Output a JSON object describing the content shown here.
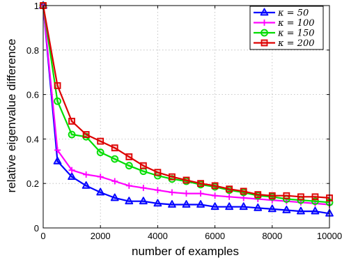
{
  "chart_data": {
    "type": "line",
    "xlabel": "number of examples",
    "ylabel": "relative eigenvalue difference",
    "xlim": [
      0,
      10000
    ],
    "ylim": [
      0,
      1
    ],
    "xticks": [
      0,
      2000,
      4000,
      6000,
      8000,
      10000
    ],
    "yticks": [
      0,
      0.2,
      0.4,
      0.6,
      0.8,
      1
    ],
    "xtick_labels": [
      "0",
      "2000",
      "4000",
      "6000",
      "8000",
      "10000"
    ],
    "ytick_labels": [
      "0",
      "0.2",
      "0.4",
      "0.6",
      "0.8",
      "1"
    ],
    "grid": true,
    "legend_position": "top-right",
    "x": [
      0,
      500,
      1000,
      1500,
      2000,
      2500,
      3000,
      3500,
      4000,
      4500,
      5000,
      5500,
      6000,
      6500,
      7000,
      7500,
      8000,
      8500,
      9000,
      9500,
      10000
    ],
    "series": [
      {
        "name": "κ = 50",
        "color": "#0000ff",
        "marker": "triangle",
        "values": [
          1.0,
          0.3,
          0.23,
          0.19,
          0.16,
          0.135,
          0.12,
          0.12,
          0.11,
          0.105,
          0.105,
          0.105,
          0.095,
          0.095,
          0.095,
          0.09,
          0.085,
          0.08,
          0.075,
          0.075,
          0.065
        ]
      },
      {
        "name": "κ = 100",
        "color": "#ff00ff",
        "marker": "plus",
        "values": [
          1.0,
          0.35,
          0.26,
          0.24,
          0.23,
          0.21,
          0.19,
          0.18,
          0.17,
          0.16,
          0.155,
          0.155,
          0.145,
          0.14,
          0.135,
          0.13,
          0.125,
          0.12,
          0.115,
          0.11,
          0.105
        ]
      },
      {
        "name": "κ = 150",
        "color": "#00dd00",
        "marker": "circle",
        "values": [
          1.0,
          0.57,
          0.42,
          0.41,
          0.34,
          0.31,
          0.28,
          0.255,
          0.235,
          0.22,
          0.21,
          0.195,
          0.185,
          0.17,
          0.16,
          0.145,
          0.14,
          0.13,
          0.125,
          0.12,
          0.115
        ]
      },
      {
        "name": "κ = 200",
        "color": "#dd0000",
        "marker": "square",
        "values": [
          1.0,
          0.64,
          0.48,
          0.42,
          0.39,
          0.36,
          0.32,
          0.28,
          0.25,
          0.23,
          0.215,
          0.2,
          0.19,
          0.175,
          0.165,
          0.15,
          0.145,
          0.145,
          0.14,
          0.14,
          0.135
        ]
      }
    ]
  }
}
